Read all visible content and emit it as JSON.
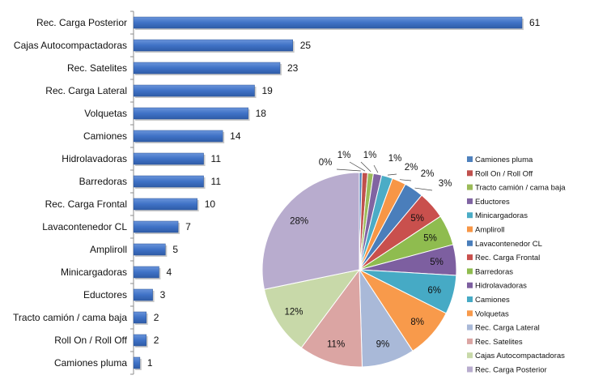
{
  "chart_data": [
    {
      "type": "bar",
      "orientation": "horizontal",
      "categories": [
        "Rec. Carga Posterior",
        "Cajas Autocompactadoras",
        "Rec. Satelites",
        "Rec. Carga Lateral",
        "Volquetas",
        "Camiones",
        "Hidrolavadoras",
        "Barredoras",
        "Rec. Carga Frontal",
        "Lavacontenedor CL",
        "Ampliroll",
        "Minicargadoras",
        "Eductores",
        "Tracto camión / cama baja",
        "Roll On / Roll Off",
        "Camiones pluma"
      ],
      "values": [
        61,
        25,
        23,
        19,
        18,
        14,
        11,
        11,
        10,
        7,
        5,
        4,
        3,
        2,
        2,
        1
      ],
      "value_labels": [
        "61",
        "25",
        "23",
        "19",
        "18",
        "14",
        "11",
        "11",
        "10",
        "7",
        "5",
        "4",
        "3",
        "2",
        "2",
        "1"
      ],
      "bar_color": "#3f72c6",
      "data_labels": true,
      "grid": false
    },
    {
      "type": "pie",
      "legend_position": "right",
      "labels": [
        "Camiones pluma",
        "Roll On / Roll Off",
        "Tracto camión / cama baja",
        "Eductores",
        "Minicargadoras",
        "Ampliroll",
        "Lavacontenedor CL",
        "Rec. Carga Frontal",
        "Barredoras",
        "Hidrolavadoras",
        "Camiones",
        "Volquetas",
        "Rec. Carga Lateral",
        "Rec. Satelites",
        "Cajas Autocompactadoras",
        "Rec. Carga Posterior"
      ],
      "values": [
        1,
        2,
        2,
        3,
        4,
        5,
        7,
        10,
        11,
        11,
        14,
        18,
        19,
        23,
        25,
        61
      ],
      "percent_labels": [
        "0%",
        "1%",
        "1%",
        "1%",
        "2%",
        "2%",
        "3%",
        "5%",
        "5%",
        "5%",
        "6%",
        "8%",
        "9%",
        "11%",
        "12%",
        "28%"
      ],
      "colors": [
        "#4f81bd",
        "#c0504d",
        "#9bbb59",
        "#8064a2",
        "#4bacc6",
        "#f79646",
        "#4a7ebb",
        "#c9504d",
        "#8fbc4f",
        "#7d5fa0",
        "#46aac5",
        "#f89a4b",
        "#a9b9d8",
        "#dba5a3",
        "#c8d9a9",
        "#b8acce"
      ]
    }
  ]
}
